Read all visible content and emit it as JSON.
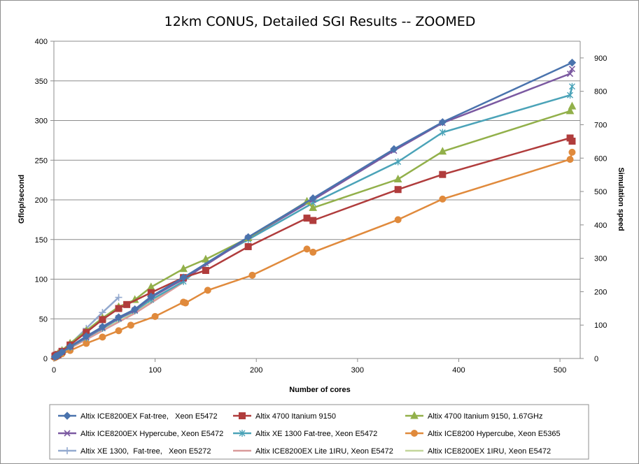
{
  "chart_data": {
    "type": "line",
    "title": "12km CONUS, Detailed SGI Results -- ZOOMED",
    "xlabel": "Number of cores",
    "ylabel": "Gflop/second",
    "y2label": "Simulation speed",
    "xlim": [
      0,
      520
    ],
    "ylim": [
      0,
      400
    ],
    "y2lim": [
      0,
      950
    ],
    "x_ticks": [
      0,
      100,
      200,
      300,
      400,
      500
    ],
    "y_ticks": [
      0,
      50,
      100,
      150,
      200,
      250,
      300,
      350,
      400
    ],
    "y2_ticks": [
      0,
      100,
      200,
      300,
      400,
      500,
      600,
      700,
      800,
      900
    ],
    "grid": "horizontal",
    "legend_position": "bottom",
    "series": [
      {
        "name": "Altix ICE8200EX Fat-tree,   Xeon E5472",
        "color": "#4a73ad",
        "marker": "diamond",
        "x": [
          1,
          2,
          4,
          8,
          16,
          32,
          48,
          64,
          80,
          96,
          128,
          192,
          256,
          336,
          384,
          512
        ],
        "y": [
          2,
          3,
          4,
          8,
          15,
          28,
          40,
          52,
          62,
          78,
          102,
          153,
          202,
          264,
          298,
          373
        ]
      },
      {
        "name": "Altix 4700 Itanium 9150",
        "color": "#b03c3c",
        "marker": "square",
        "x": [
          1,
          2,
          4,
          8,
          16,
          32,
          48,
          64,
          72,
          96,
          128,
          150,
          192,
          250,
          256,
          340,
          384,
          510,
          512
        ],
        "y": [
          3,
          4,
          5,
          9,
          17,
          33,
          49,
          63,
          68,
          83,
          102,
          111,
          141,
          177,
          174,
          213,
          232,
          278,
          274
        ]
      },
      {
        "name": "Altix 4700 Itanium 9150, 1.67GHz",
        "color": "#92b04a",
        "marker": "triangle",
        "x": [
          1,
          2,
          4,
          8,
          16,
          32,
          48,
          64,
          80,
          96,
          128,
          150,
          192,
          250,
          256,
          340,
          384,
          510,
          512
        ],
        "y": [
          3,
          4,
          6,
          10,
          19,
          35,
          51,
          65,
          74,
          90,
          113,
          125,
          152,
          198,
          190,
          226,
          261,
          312,
          318
        ]
      },
      {
        "name": "Altix ICE8200EX Hypercube, Xeon E5472",
        "color": "#7b59a1",
        "marker": "x",
        "x": [
          1,
          2,
          4,
          8,
          16,
          32,
          48,
          64,
          80,
          96,
          128,
          192,
          256,
          336,
          384,
          510,
          512
        ],
        "y": [
          2,
          3,
          4,
          8,
          15,
          27,
          39,
          51,
          61,
          77,
          100,
          152,
          200,
          262,
          297,
          359,
          365
        ]
      },
      {
        "name": "Altix XE 1300 Fat-tree, Xeon E5472",
        "color": "#4ba3b8",
        "marker": "asterisk",
        "x": [
          1,
          2,
          4,
          8,
          16,
          32,
          48,
          64,
          80,
          96,
          128,
          150,
          192,
          256,
          340,
          384,
          510,
          512
        ],
        "y": [
          2,
          3,
          4,
          8,
          14,
          26,
          38,
          50,
          60,
          74,
          97,
          120,
          150,
          196,
          248,
          285,
          332,
          343
        ]
      },
      {
        "name": "Altix ICE8200 Hypercube, Xeon E5365",
        "color": "#e08a3c",
        "marker": "circle",
        "x": [
          1,
          2,
          4,
          8,
          16,
          32,
          48,
          64,
          76,
          100,
          128,
          130,
          152,
          196,
          250,
          256,
          340,
          384,
          510,
          512
        ],
        "y": [
          1,
          2,
          3,
          6,
          10,
          19,
          27,
          35,
          42,
          53,
          71,
          70,
          86,
          105,
          138,
          134,
          175,
          201,
          251,
          260
        ]
      },
      {
        "name": "Altix XE 1300,  Fat-tree,   Xeon E5272",
        "color": "#93a9cf",
        "marker": "plus",
        "x": [
          1,
          2,
          4,
          8,
          16,
          32,
          48,
          64
        ],
        "y": [
          2,
          3,
          5,
          9,
          18,
          38,
          58,
          77
        ]
      },
      {
        "name": "Altix ICE8200EX Lite 1IRU, Xeon E5472",
        "color": "#d99a9a",
        "marker": "none",
        "x": [
          1,
          2,
          4,
          8,
          16,
          32,
          48,
          64,
          80,
          96,
          128
        ],
        "y": [
          2,
          3,
          4,
          7,
          13,
          24,
          35,
          46,
          57,
          70,
          96
        ]
      },
      {
        "name": "Altix ICE8200EX 1IRU, Xeon E5472",
        "color": "#c3d69b",
        "marker": "none",
        "x": [
          1,
          2,
          4,
          8,
          16,
          32,
          48,
          64,
          80,
          96,
          128
        ],
        "y": [
          2,
          3,
          4,
          7,
          13,
          25,
          36,
          47,
          58,
          71,
          98
        ]
      }
    ]
  }
}
